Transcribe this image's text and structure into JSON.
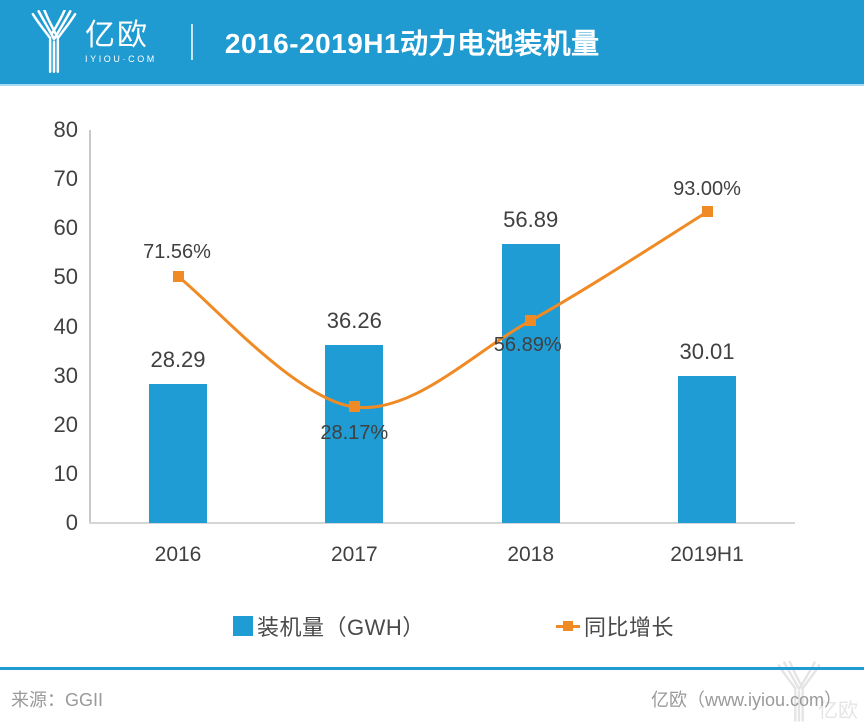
{
  "header": {
    "logo": {
      "brand": "亿欧",
      "domain": "IYIOU·COM"
    },
    "title": "2016-2019H1动力电池装机量"
  },
  "chart_data": {
    "type": "bar",
    "combo": "bar+line",
    "title": "2016-2019H1动力电池装机量",
    "categories": [
      "2016",
      "2017",
      "2018",
      "2019H1"
    ],
    "series": [
      {
        "name": "装机量（GWH）",
        "type": "bar",
        "axis": "primary",
        "values": [
          28.29,
          36.26,
          56.89,
          30.01
        ],
        "data_labels": [
          "28.29",
          "36.26",
          "56.89",
          "30.01"
        ]
      },
      {
        "name": "同比增长",
        "type": "line",
        "axis": "secondary-hidden",
        "values_percent": [
          71.56,
          28.17,
          56.89,
          93.0
        ],
        "data_labels": [
          "71.56%",
          "28.17%",
          "56.89%",
          "93.00%"
        ]
      }
    ],
    "y_axis": {
      "ticks": [
        80,
        70,
        60,
        50,
        40,
        30,
        20,
        10,
        0
      ],
      "min": 0,
      "max": 80,
      "gridlines": false
    },
    "legend_position": "bottom",
    "marker_shape": "square"
  },
  "legend": {
    "items": [
      {
        "label": "装机量（GWH）",
        "swatch": "blue-square"
      },
      {
        "label": "同比增长",
        "swatch": "orange-line-square-marker"
      }
    ]
  },
  "footer": {
    "source": "来源：GGII",
    "credit": "亿欧（www.iyiou.com）",
    "watermark_brand": "亿欧"
  },
  "colors": {
    "brand_blue": "#1F9BD2",
    "bar_blue": "#209CD4",
    "line_orange": "#F08A24",
    "label_dark": "#404040",
    "axis_gray": "#C9C9C9",
    "baseline_gray": "#D6D6D6",
    "footer_gray": "#9A9A9A",
    "header_edge": "#A9D9EF"
  }
}
